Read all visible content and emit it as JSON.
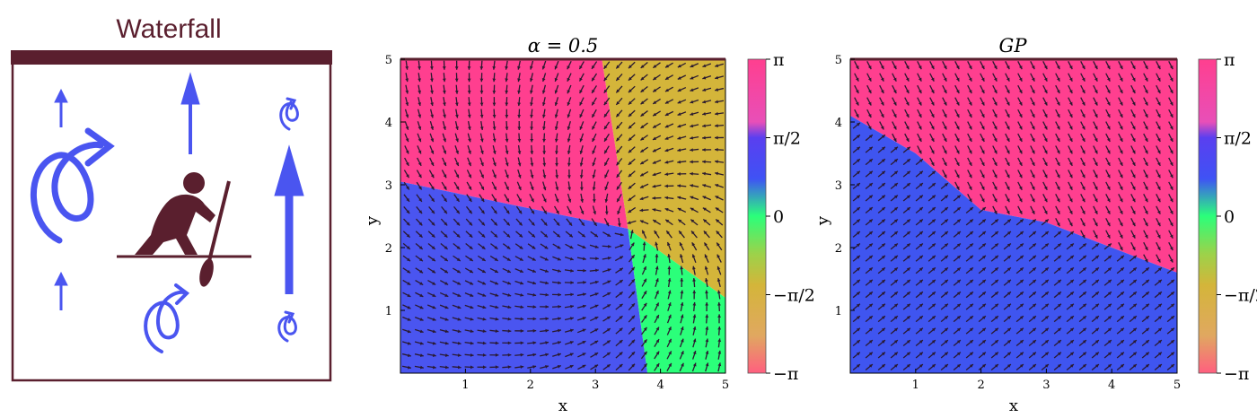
{
  "diagram": {
    "title": "Waterfall",
    "frame_color": "#5a1f2e",
    "arrow_color": "#4a55f0",
    "figure_color": "#5a1f2e"
  },
  "colorbar": {
    "tick_labels": [
      "π",
      "π/2",
      "0",
      "−π/2",
      "−π"
    ],
    "colors": {
      "pi": "#ff3f8f",
      "half_pi": "#4a3ff0",
      "zero": "#2bff7a",
      "neg_half_pi": "#d4b53a",
      "neg_pi": "#ff5f7f"
    }
  },
  "chart_data": [
    {
      "type": "heatmap",
      "title": "α = 0.5",
      "xlabel": "x",
      "ylabel": "y",
      "xlim": [
        0,
        5
      ],
      "ylim": [
        0,
        5
      ],
      "x_ticks": [
        "1",
        "2",
        "3",
        "4",
        "5"
      ],
      "y_ticks": [
        "1",
        "2",
        "3",
        "4",
        "5"
      ],
      "colorbar_range": [
        -3.1416,
        3.1416
      ],
      "regions": [
        {
          "color": "#ff3f8f",
          "label": "phase ≈ π (top-left)"
        },
        {
          "color": "#d4b53a",
          "label": "phase ≈ −π/2 (top-right)"
        },
        {
          "color": "#4a55f0",
          "label": "phase ≈ π/2 (bottom-left)"
        },
        {
          "color": "#2bff7a",
          "label": "phase ≈ 0 (bottom-right)"
        }
      ],
      "singularity": [
        3.5,
        2.3
      ]
    },
    {
      "type": "heatmap",
      "title": "GP",
      "xlabel": "x",
      "ylabel": "y",
      "xlim": [
        0,
        5
      ],
      "ylim": [
        0,
        5
      ],
      "x_ticks": [
        "1",
        "2",
        "3",
        "4",
        "5"
      ],
      "y_ticks": [
        "1",
        "2",
        "3",
        "4",
        "5"
      ],
      "colorbar_range": [
        -3.1416,
        3.1416
      ],
      "boundary": [
        [
          0,
          4.1
        ],
        [
          1,
          3.5
        ],
        [
          2,
          2.6
        ],
        [
          2.5,
          2.5
        ],
        [
          3,
          2.4
        ],
        [
          4,
          2.0
        ],
        [
          5,
          1.6
        ]
      ]
    }
  ]
}
